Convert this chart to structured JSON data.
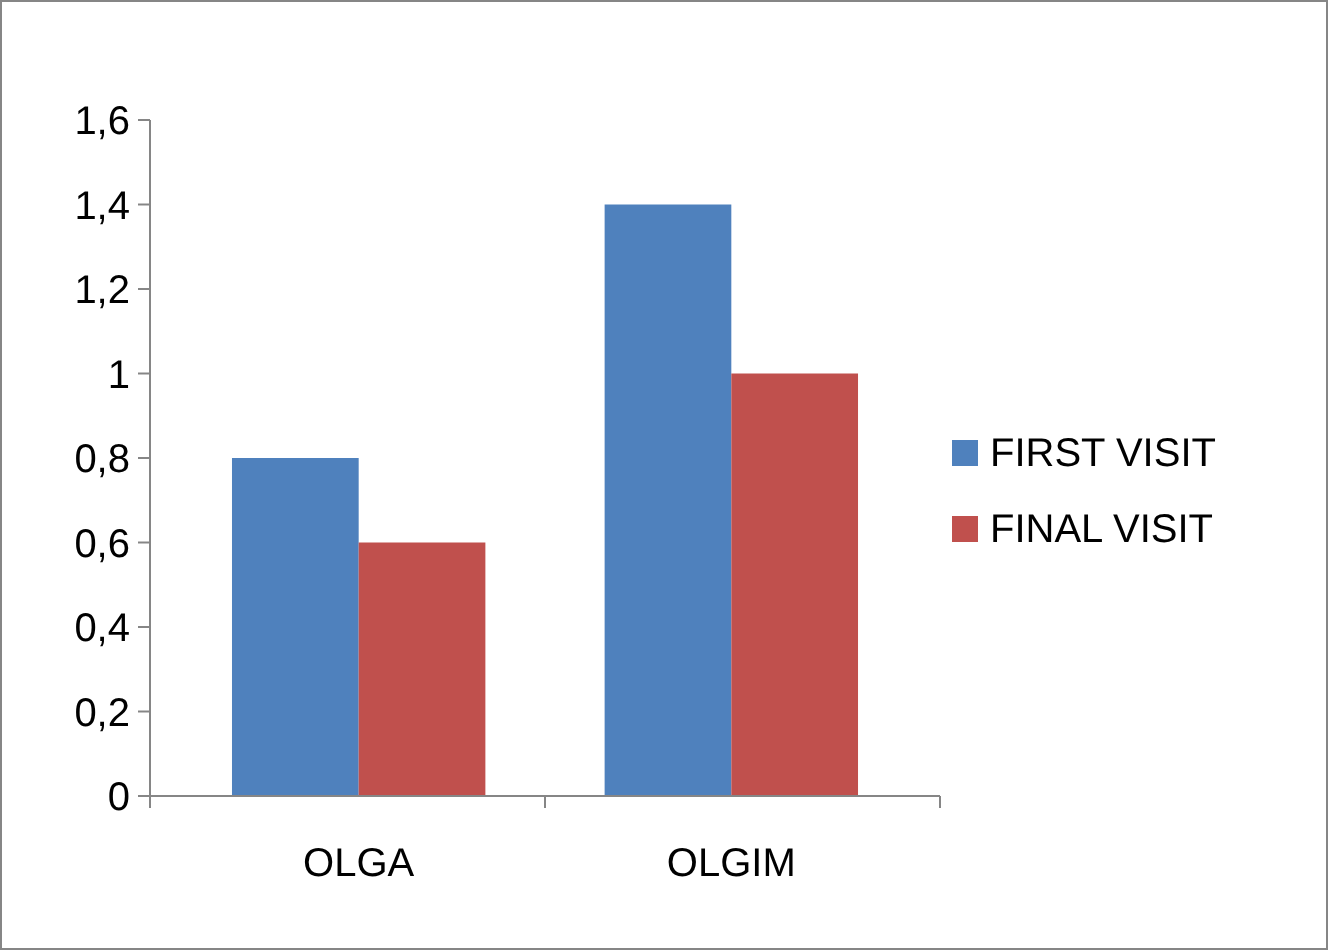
{
  "chart_data": {
    "type": "bar",
    "categories": [
      "OLGA",
      "OLGIM"
    ],
    "series": [
      {
        "name": "FIRST VISIT",
        "color": "#4f81bd",
        "values": [
          0.8,
          1.4
        ]
      },
      {
        "name": "FINAL VISIT",
        "color": "#c0504d",
        "values": [
          0.6,
          1.0
        ]
      }
    ],
    "ylim": [
      0,
      1.6
    ],
    "yticks": [
      0,
      {
        "value": 0.2,
        "label": "0,2"
      },
      {
        "value": 0.4,
        "label": "0,4"
      },
      {
        "value": 0.6,
        "label": "0,6"
      },
      {
        "value": 0.8,
        "label": "0,8"
      },
      1,
      {
        "value": 1.2,
        "label": "1,2"
      },
      {
        "value": 1.4,
        "label": "1,4"
      },
      {
        "value": 1.6,
        "label": "1,6"
      }
    ],
    "grid": false,
    "legend": "right"
  }
}
